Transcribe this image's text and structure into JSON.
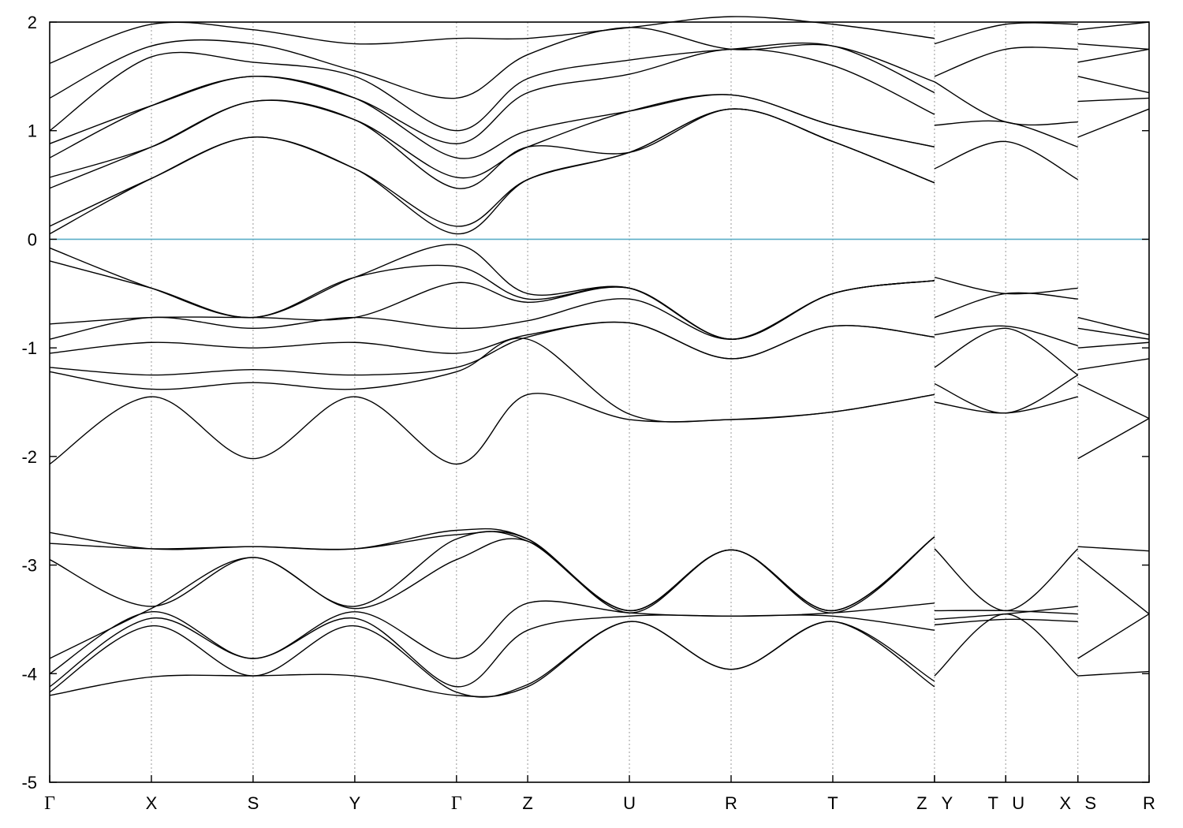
{
  "chart_data": {
    "type": "line",
    "title": "",
    "xlabel": "",
    "ylabel": "",
    "ylim": [
      -5,
      2
    ],
    "yticks": [
      2,
      1,
      0,
      -1,
      -2,
      -3,
      -4,
      -5
    ],
    "grid": "vertical dotted lines at high-symmetry points",
    "legend": "none",
    "fermi_level": 0,
    "colors": {
      "bands": "#000000",
      "fermi_line": "#5aaec8",
      "grid": "#999999"
    },
    "kpath": [
      {
        "label": "Γ",
        "x": 0.0
      },
      {
        "label": "X",
        "x": 1.0
      },
      {
        "label": "S",
        "x": 2.0
      },
      {
        "label": "Y",
        "x": 3.0
      },
      {
        "label": "Γ",
        "x": 4.0
      },
      {
        "label": "Z",
        "x": 4.7
      },
      {
        "label": "U",
        "x": 5.7
      },
      {
        "label": "R",
        "x": 6.7
      },
      {
        "label": "T",
        "x": 7.7
      },
      {
        "label": "Z",
        "x": 8.7
      },
      {
        "label": "Y",
        "x": 8.7
      },
      {
        "label": "T",
        "x": 9.4
      },
      {
        "label": "U",
        "x": 9.4
      },
      {
        "label": "X",
        "x": 10.11
      },
      {
        "label": "S",
        "x": 10.11
      },
      {
        "label": "R",
        "x": 10.81
      }
    ],
    "series": [
      {
        "x": [
          0,
          1,
          2,
          3,
          4,
          4.7,
          5.7,
          6.7,
          7.7,
          8.7
        ],
        "y": [
          -4.2,
          -4.03,
          -4.02,
          -4.02,
          -4.2,
          -4.12,
          -3.52,
          -3.96,
          -3.52,
          -4.12
        ]
      },
      {
        "x": [
          0,
          1,
          2,
          3,
          4,
          4.7,
          5.7,
          6.7,
          7.7,
          8.7
        ],
        "y": [
          -4.17,
          -3.56,
          -4.02,
          -3.56,
          -4.17,
          -4.1,
          -3.52,
          -3.96,
          -3.52,
          -4.07
        ]
      },
      {
        "x": [
          0,
          1,
          2,
          3,
          4,
          4.7,
          5.7,
          6.7,
          7.7,
          8.7
        ],
        "y": [
          -4.12,
          -3.49,
          -3.86,
          -3.49,
          -4.12,
          -3.6,
          -3.47,
          -3.47,
          -3.47,
          -3.6
        ]
      },
      {
        "x": [
          0,
          1,
          2,
          3,
          4,
          4.7,
          5.7,
          6.7,
          7.7,
          8.7
        ],
        "y": [
          -4.0,
          -3.43,
          -3.86,
          -3.43,
          -3.86,
          -3.35,
          -3.44,
          -3.47,
          -3.44,
          -3.35
        ]
      },
      {
        "x": [
          0,
          1,
          2,
          3,
          4,
          4.7,
          5.7,
          6.7,
          7.7,
          8.7
        ],
        "y": [
          -3.86,
          -3.4,
          -2.93,
          -3.4,
          -2.95,
          -2.78,
          -3.44,
          -2.86,
          -3.44,
          -2.74
        ]
      },
      {
        "x": [
          0,
          1,
          2,
          3,
          4,
          4.7,
          5.7,
          6.7,
          7.7,
          8.7
        ],
        "y": [
          -2.95,
          -3.38,
          -2.93,
          -3.38,
          -2.76,
          -2.78,
          -3.42,
          -2.86,
          -3.42,
          -2.74
        ]
      },
      {
        "x": [
          0,
          1,
          2,
          3,
          4,
          4.7,
          5.7,
          6.7,
          7.7,
          8.7
        ],
        "y": [
          -2.8,
          -2.85,
          -2.83,
          -2.85,
          -2.72,
          -2.76,
          -3.42,
          -2.86,
          -3.42,
          -2.74
        ]
      },
      {
        "x": [
          0,
          1,
          2,
          3,
          4,
          4.7,
          5.7,
          6.7,
          7.7,
          8.7
        ],
        "y": [
          -2.7,
          -2.85,
          -2.83,
          -2.85,
          -2.68,
          -2.76,
          -3.42,
          -2.86,
          -3.42,
          -2.74
        ]
      },
      {
        "x": [
          0,
          1,
          2,
          3,
          4,
          4.7,
          5.7,
          6.7,
          7.7,
          8.7
        ],
        "y": [
          -2.07,
          -1.45,
          -2.02,
          -1.45,
          -2.07,
          -1.43,
          -1.66,
          -1.66,
          -1.59,
          -1.43
        ]
      },
      {
        "x": [
          0,
          1,
          2,
          3,
          4,
          4.7,
          5.7,
          6.7,
          7.7,
          8.7
        ],
        "y": [
          -1.22,
          -1.38,
          -1.32,
          -1.38,
          -1.22,
          -0.92,
          -1.61,
          -1.66,
          -1.59,
          -1.43
        ]
      },
      {
        "x": [
          0,
          1,
          2,
          3,
          4,
          4.7,
          5.7,
          6.7,
          7.7,
          8.7
        ],
        "y": [
          -1.18,
          -1.25,
          -1.2,
          -1.25,
          -1.18,
          -0.9,
          -0.77,
          -1.1,
          -0.8,
          -0.9
        ]
      },
      {
        "x": [
          0,
          1,
          2,
          3,
          4,
          4.7,
          5.7,
          6.7,
          7.7,
          8.7
        ],
        "y": [
          -1.05,
          -0.95,
          -1.0,
          -0.95,
          -1.05,
          -0.88,
          -0.77,
          -1.1,
          -0.8,
          -0.9
        ]
      },
      {
        "x": [
          0,
          1,
          2,
          3,
          4,
          4.7,
          5.7,
          6.7,
          7.7,
          8.7
        ],
        "y": [
          -0.92,
          -0.72,
          -0.82,
          -0.72,
          -0.82,
          -0.75,
          -0.55,
          -0.92,
          -0.5,
          -0.38
        ]
      },
      {
        "x": [
          0,
          1,
          2,
          3,
          4,
          4.7,
          5.7,
          6.7,
          7.7,
          8.7
        ],
        "y": [
          -0.78,
          -0.72,
          -0.72,
          -0.72,
          -0.4,
          -0.58,
          -0.45,
          -0.92,
          -0.5,
          -0.38
        ]
      },
      {
        "x": [
          0,
          1,
          2,
          3,
          4,
          4.7,
          5.7,
          6.7,
          7.7,
          8.7
        ],
        "y": [
          -0.2,
          -0.45,
          -0.72,
          -0.35,
          -0.25,
          -0.55,
          -0.45,
          -0.92,
          -0.5,
          -0.38
        ]
      },
      {
        "x": [
          0,
          1,
          2,
          3,
          4,
          4.7,
          5.7,
          6.7,
          7.7,
          8.7
        ],
        "y": [
          -0.08,
          -0.45,
          -0.72,
          -0.35,
          -0.05,
          -0.5,
          -0.45,
          -0.92,
          -0.5,
          -0.38
        ]
      },
      {
        "x": [
          0,
          1,
          2,
          3,
          4,
          4.7,
          5.7,
          6.7,
          7.7,
          8.7
        ],
        "y": [
          0.05,
          0.56,
          0.94,
          0.65,
          0.05,
          0.55,
          0.8,
          1.2,
          0.9,
          0.52
        ]
      },
      {
        "x": [
          0,
          1,
          2,
          3,
          4,
          4.7,
          5.7,
          6.7,
          7.7,
          8.7
        ],
        "y": [
          0.12,
          0.56,
          0.94,
          0.65,
          0.12,
          0.55,
          0.8,
          1.2,
          0.9,
          0.52
        ]
      },
      {
        "x": [
          0,
          1,
          2,
          3,
          4,
          4.7,
          5.7,
          6.7,
          7.7,
          8.7
        ],
        "y": [
          0.47,
          0.85,
          1.27,
          1.1,
          0.47,
          0.85,
          0.8,
          1.2,
          0.9,
          0.52
        ]
      },
      {
        "x": [
          0,
          1,
          2,
          3,
          4,
          4.7,
          5.7,
          6.7,
          7.7,
          8.7
        ],
        "y": [
          0.57,
          0.85,
          1.27,
          1.1,
          0.57,
          0.85,
          1.18,
          1.33,
          1.05,
          0.85
        ]
      },
      {
        "x": [
          0,
          1,
          2,
          3,
          4,
          4.7,
          5.7,
          6.7,
          7.7,
          8.7
        ],
        "y": [
          0.75,
          1.23,
          1.5,
          1.3,
          0.75,
          1.0,
          1.18,
          1.33,
          1.05,
          0.85
        ]
      },
      {
        "x": [
          0,
          1,
          2,
          3,
          4,
          4.7,
          5.7,
          6.7,
          7.7,
          8.7
        ],
        "y": [
          0.88,
          1.23,
          1.5,
          1.3,
          0.88,
          1.35,
          1.52,
          1.75,
          1.6,
          1.15
        ]
      },
      {
        "x": [
          0,
          1,
          2,
          3,
          4,
          4.7,
          5.7,
          6.7,
          7.7,
          8.7
        ],
        "y": [
          1.0,
          1.68,
          1.63,
          1.5,
          1.0,
          1.48,
          1.65,
          1.75,
          1.78,
          1.35
        ]
      },
      {
        "x": [
          0,
          1,
          2,
          3,
          4,
          4.7,
          5.7,
          6.7,
          7.7,
          8.7
        ],
        "y": [
          1.3,
          1.78,
          1.8,
          1.55,
          1.3,
          1.7,
          1.95,
          1.75,
          1.78,
          1.45
        ]
      },
      {
        "x": [
          0,
          1,
          2,
          3,
          4,
          4.7,
          5.7,
          6.7,
          7.7,
          8.7
        ],
        "y": [
          1.62,
          1.98,
          1.93,
          1.8,
          1.85,
          1.85,
          1.95,
          2.05,
          1.98,
          1.85
        ]
      },
      {
        "x": [
          8.7,
          9.4,
          10.11
        ],
        "y": [
          -4.02,
          -3.45,
          -4.02
        ]
      },
      {
        "x": [
          8.7,
          9.4,
          10.11
        ],
        "y": [
          -3.55,
          -3.5,
          -3.52
        ]
      },
      {
        "x": [
          8.7,
          9.4,
          10.11
        ],
        "y": [
          -3.5,
          -3.45,
          -3.38
        ]
      },
      {
        "x": [
          8.7,
          9.4,
          10.11
        ],
        "y": [
          -3.42,
          -3.42,
          -3.45
        ]
      },
      {
        "x": [
          8.7,
          9.4,
          10.11
        ],
        "y": [
          -2.85,
          -3.42,
          -2.85
        ]
      },
      {
        "x": [
          8.7,
          9.4,
          10.11
        ],
        "y": [
          -1.5,
          -1.6,
          -1.45
        ]
      },
      {
        "x": [
          8.7,
          9.4,
          10.11
        ],
        "y": [
          -1.33,
          -1.6,
          -1.25
        ]
      },
      {
        "x": [
          8.7,
          9.4,
          10.11
        ],
        "y": [
          -1.18,
          -0.82,
          -1.25
        ]
      },
      {
        "x": [
          8.7,
          9.4,
          10.11
        ],
        "y": [
          -0.88,
          -0.8,
          -0.98
        ]
      },
      {
        "x": [
          8.7,
          9.4,
          10.11
        ],
        "y": [
          -0.72,
          -0.5,
          -0.55
        ]
      },
      {
        "x": [
          8.7,
          9.4,
          10.11
        ],
        "y": [
          -0.35,
          -0.5,
          -0.45
        ]
      },
      {
        "x": [
          8.7,
          9.4,
          10.11
        ],
        "y": [
          0.65,
          0.9,
          0.55
        ]
      },
      {
        "x": [
          8.7,
          9.4,
          10.11
        ],
        "y": [
          1.05,
          1.08,
          0.85
        ]
      },
      {
        "x": [
          8.7,
          9.4,
          10.11
        ],
        "y": [
          1.45,
          1.08,
          1.08
        ]
      },
      {
        "x": [
          8.7,
          9.4,
          10.11
        ],
        "y": [
          1.5,
          1.75,
          1.75
        ]
      },
      {
        "x": [
          8.7,
          9.4,
          10.11
        ],
        "y": [
          1.8,
          1.98,
          1.98
        ]
      },
      {
        "x": [
          10.11,
          10.81
        ],
        "y": [
          -4.02,
          -3.98
        ]
      },
      {
        "x": [
          10.11,
          10.81
        ],
        "y": [
          -3.86,
          -3.45
        ]
      },
      {
        "x": [
          10.11,
          10.81
        ],
        "y": [
          -2.93,
          -3.45
        ]
      },
      {
        "x": [
          10.11,
          10.81
        ],
        "y": [
          -2.83,
          -2.87
        ]
      },
      {
        "x": [
          10.11,
          10.81
        ],
        "y": [
          -2.02,
          -1.65
        ]
      },
      {
        "x": [
          10.11,
          10.81
        ],
        "y": [
          -1.33,
          -1.65
        ]
      },
      {
        "x": [
          10.11,
          10.81
        ],
        "y": [
          -1.2,
          -1.1
        ]
      },
      {
        "x": [
          10.11,
          10.81
        ],
        "y": [
          -1.0,
          -0.95
        ]
      },
      {
        "x": [
          10.11,
          10.81
        ],
        "y": [
          -0.82,
          -0.92
        ]
      },
      {
        "x": [
          10.11,
          10.81
        ],
        "y": [
          -0.72,
          -0.88
        ]
      },
      {
        "x": [
          10.11,
          10.81
        ],
        "y": [
          0.94,
          1.2
        ]
      },
      {
        "x": [
          10.11,
          10.81
        ],
        "y": [
          1.27,
          1.3
        ]
      },
      {
        "x": [
          10.11,
          10.81
        ],
        "y": [
          1.5,
          1.35
        ]
      },
      {
        "x": [
          10.11,
          10.81
        ],
        "y": [
          1.63,
          1.75
        ]
      },
      {
        "x": [
          10.11,
          10.81
        ],
        "y": [
          1.8,
          1.75
        ]
      },
      {
        "x": [
          10.11,
          10.81
        ],
        "y": [
          1.93,
          2.0
        ]
      }
    ]
  }
}
